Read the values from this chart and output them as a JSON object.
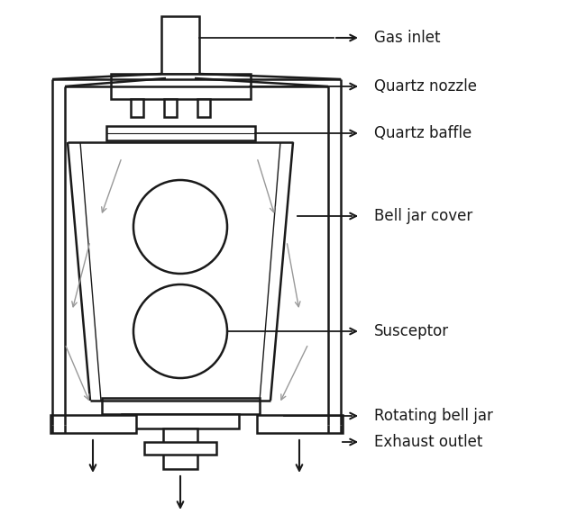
{
  "bg_color": "#ffffff",
  "line_color": "#1a1a1a",
  "gray_color": "#999999",
  "lw": 1.8,
  "lw_thin": 1.0,
  "label_fontsize": 12,
  "labels": [
    "Gas inlet",
    "Quartz nozzle",
    "Quartz baffle",
    "Bell jar cover",
    "Susceptor",
    "Rotating bell jar",
    "Exhaust outlet"
  ]
}
